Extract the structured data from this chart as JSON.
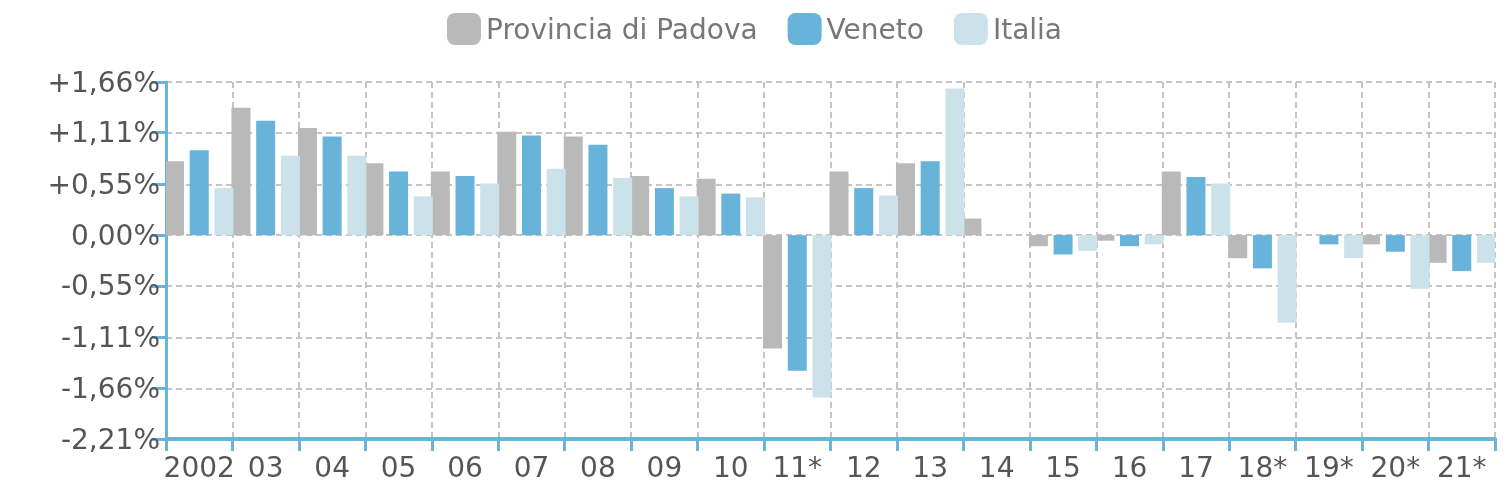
{
  "chart_data": {
    "type": "bar",
    "categories": [
      "2002",
      "03",
      "04",
      "05",
      "06",
      "07",
      "08",
      "09",
      "10",
      "11*",
      "12",
      "13",
      "14",
      "15",
      "16",
      "17",
      "18*",
      "19*",
      "20*",
      "21*"
    ],
    "series": [
      {
        "name": "Provincia di Padova",
        "color": "#b9b9b9",
        "values": [
          0.8,
          1.38,
          1.16,
          0.78,
          0.69,
          1.12,
          1.07,
          0.64,
          0.61,
          -1.23,
          0.69,
          0.78,
          0.18,
          -0.12,
          -0.06,
          0.69,
          -0.25,
          0,
          -0.1,
          -0.3
        ]
      },
      {
        "name": "Veneto",
        "color": "#67b3d9",
        "values": [
          0.92,
          1.24,
          1.07,
          0.69,
          0.64,
          1.08,
          0.98,
          0.51,
          0.45,
          -1.47,
          0.51,
          0.8,
          null,
          -0.21,
          -0.12,
          0.63,
          -0.36,
          -0.1,
          -0.18,
          -0.39
        ]
      },
      {
        "name": "Italia",
        "color": "#cce2ea",
        "values": [
          0.51,
          0.86,
          0.86,
          0.42,
          0.56,
          0.72,
          0.62,
          0.42,
          0.41,
          -1.76,
          0.43,
          1.59,
          null,
          -0.17,
          -0.1,
          0.56,
          -0.95,
          -0.25,
          -0.58,
          -0.3
        ]
      }
    ],
    "ylim": [
      -2.21,
      1.66
    ],
    "yticks": [
      {
        "value": -2.21,
        "label": "-2,21%"
      },
      {
        "value": -1.66,
        "label": "-1,66%"
      },
      {
        "value": -1.11,
        "label": "-1,11%"
      },
      {
        "value": -0.55,
        "label": "-0,55%"
      },
      {
        "value": 0,
        "label": "0,00%"
      },
      {
        "value": 0.55,
        "label": "+0,55%"
      },
      {
        "value": 1.11,
        "label": "+1,11%"
      },
      {
        "value": 1.66,
        "label": "+1,66%"
      }
    ],
    "grid": true,
    "legend": "top"
  }
}
